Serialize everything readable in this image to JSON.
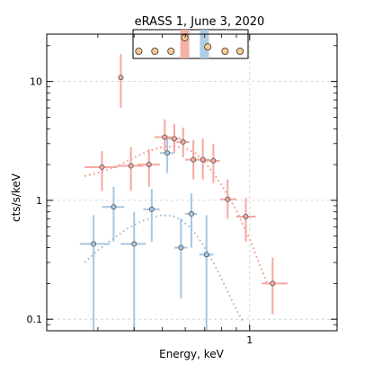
{
  "chart_data": {
    "type": "scatter",
    "title": "eRASS 1, June 3, 2020",
    "xlabel": "Energy, keV",
    "ylabel": "cts/s/keV",
    "xscale": "log",
    "yscale": "log",
    "xlim": [
      0.2,
      2.0
    ],
    "ylim": [
      0.08,
      25
    ],
    "x_ticks": [
      {
        "value": 1,
        "label": "1"
      }
    ],
    "y_ticks": [
      {
        "value": 0.1,
        "label": "0.1"
      },
      {
        "value": 1,
        "label": "1"
      },
      {
        "value": 10,
        "label": "10"
      }
    ],
    "grid": true,
    "colors": {
      "red": "#f4a8a0",
      "blue": "#a9c6e0",
      "marker_edge": "#555555"
    },
    "series": [
      {
        "color": "#f4a8a0",
        "points": [
          {
            "x": 0.31,
            "xlo": 0.27,
            "xhi": 0.35,
            "y": 1.9,
            "ylo": 1.2,
            "yhi": 2.6
          },
          {
            "x": 0.36,
            "xlo": 0.36,
            "xhi": 0.36,
            "y": 10.8,
            "ylo": 6.0,
            "yhi": 17.0
          },
          {
            "x": 0.39,
            "xlo": 0.35,
            "xhi": 0.43,
            "y": 1.95,
            "ylo": 1.2,
            "yhi": 2.8
          },
          {
            "x": 0.45,
            "xlo": 0.41,
            "xhi": 0.49,
            "y": 2.0,
            "ylo": 1.3,
            "yhi": 2.7
          },
          {
            "x": 0.51,
            "xlo": 0.47,
            "xhi": 0.54,
            "y": 3.4,
            "ylo": 2.6,
            "yhi": 4.8
          },
          {
            "x": 0.55,
            "xlo": 0.52,
            "xhi": 0.58,
            "y": 3.3,
            "ylo": 2.5,
            "yhi": 4.4
          },
          {
            "x": 0.59,
            "xlo": 0.56,
            "xhi": 0.62,
            "y": 3.1,
            "ylo": 2.3,
            "yhi": 4.1
          },
          {
            "x": 0.64,
            "xlo": 0.6,
            "xhi": 0.68,
            "y": 2.2,
            "ylo": 1.5,
            "yhi": 3.2
          },
          {
            "x": 0.69,
            "xlo": 0.65,
            "xhi": 0.73,
            "y": 2.2,
            "ylo": 1.5,
            "yhi": 3.3
          },
          {
            "x": 0.75,
            "xlo": 0.7,
            "xhi": 0.79,
            "y": 2.15,
            "ylo": 1.4,
            "yhi": 3.0
          },
          {
            "x": 0.84,
            "xlo": 0.79,
            "xhi": 0.9,
            "y": 1.02,
            "ylo": 0.7,
            "yhi": 1.5
          },
          {
            "x": 0.97,
            "xlo": 0.9,
            "xhi": 1.05,
            "y": 0.73,
            "ylo": 0.45,
            "yhi": 1.05
          },
          {
            "x": 1.2,
            "xlo": 1.1,
            "xhi": 1.35,
            "y": 0.2,
            "ylo": 0.11,
            "yhi": 0.33
          }
        ],
        "model": [
          [
            0.27,
            1.6
          ],
          [
            0.3,
            1.7
          ],
          [
            0.33,
            1.85
          ],
          [
            0.36,
            2.0
          ],
          [
            0.4,
            2.3
          ],
          [
            0.45,
            2.6
          ],
          [
            0.5,
            2.8
          ],
          [
            0.55,
            2.85
          ],
          [
            0.6,
            2.75
          ],
          [
            0.65,
            2.5
          ],
          [
            0.7,
            2.1
          ],
          [
            0.75,
            1.7
          ],
          [
            0.8,
            1.35
          ],
          [
            0.85,
            1.05
          ],
          [
            0.9,
            0.82
          ],
          [
            0.95,
            0.62
          ],
          [
            1.0,
            0.47
          ],
          [
            1.05,
            0.35
          ],
          [
            1.1,
            0.26
          ],
          [
            1.15,
            0.2
          ]
        ]
      },
      {
        "color": "#a9c6e0",
        "points": [
          {
            "x": 0.29,
            "xlo": 0.26,
            "xhi": 0.33,
            "y": 0.43,
            "ylo": 0.08,
            "yhi": 0.75
          },
          {
            "x": 0.34,
            "xlo": 0.31,
            "xhi": 0.37,
            "y": 0.88,
            "ylo": 0.45,
            "yhi": 1.3
          },
          {
            "x": 0.4,
            "xlo": 0.36,
            "xhi": 0.44,
            "y": 0.43,
            "ylo": 0.08,
            "yhi": 0.8
          },
          {
            "x": 0.46,
            "xlo": 0.43,
            "xhi": 0.49,
            "y": 0.84,
            "ylo": 0.45,
            "yhi": 1.25
          },
          {
            "x": 0.52,
            "xlo": 0.49,
            "xhi": 0.55,
            "y": 2.5,
            "ylo": 1.7,
            "yhi": 3.3
          },
          {
            "x": 0.58,
            "xlo": 0.55,
            "xhi": 0.61,
            "y": 0.4,
            "ylo": 0.15,
            "yhi": 0.7
          },
          {
            "x": 0.63,
            "xlo": 0.6,
            "xhi": 0.66,
            "y": 0.77,
            "ylo": 0.4,
            "yhi": 1.15
          },
          {
            "x": 0.71,
            "xlo": 0.67,
            "xhi": 0.75,
            "y": 0.35,
            "ylo": 0.08,
            "yhi": 0.75
          }
        ],
        "model": [
          [
            0.27,
            0.3
          ],
          [
            0.3,
            0.38
          ],
          [
            0.34,
            0.48
          ],
          [
            0.38,
            0.58
          ],
          [
            0.42,
            0.66
          ],
          [
            0.46,
            0.72
          ],
          [
            0.5,
            0.75
          ],
          [
            0.54,
            0.74
          ],
          [
            0.58,
            0.69
          ],
          [
            0.62,
            0.6
          ],
          [
            0.66,
            0.5
          ],
          [
            0.7,
            0.4
          ],
          [
            0.75,
            0.3
          ],
          [
            0.8,
            0.22
          ],
          [
            0.85,
            0.16
          ],
          [
            0.9,
            0.12
          ],
          [
            0.95,
            0.095
          ]
        ]
      }
    ],
    "inset": {
      "bands": [
        {
          "color": "#f4a8a0",
          "pos": 0.45
        },
        {
          "color": "#a9c6e0",
          "pos": 0.62
        }
      ],
      "markers": [
        {
          "pos": 0.05,
          "level": 0.25
        },
        {
          "pos": 0.19,
          "level": 0.25
        },
        {
          "pos": 0.33,
          "level": 0.25
        },
        {
          "pos": 0.45,
          "level": 0.72
        },
        {
          "pos": 0.65,
          "level": 0.4
        },
        {
          "pos": 0.8,
          "level": 0.25
        },
        {
          "pos": 0.93,
          "level": 0.25
        }
      ]
    }
  }
}
